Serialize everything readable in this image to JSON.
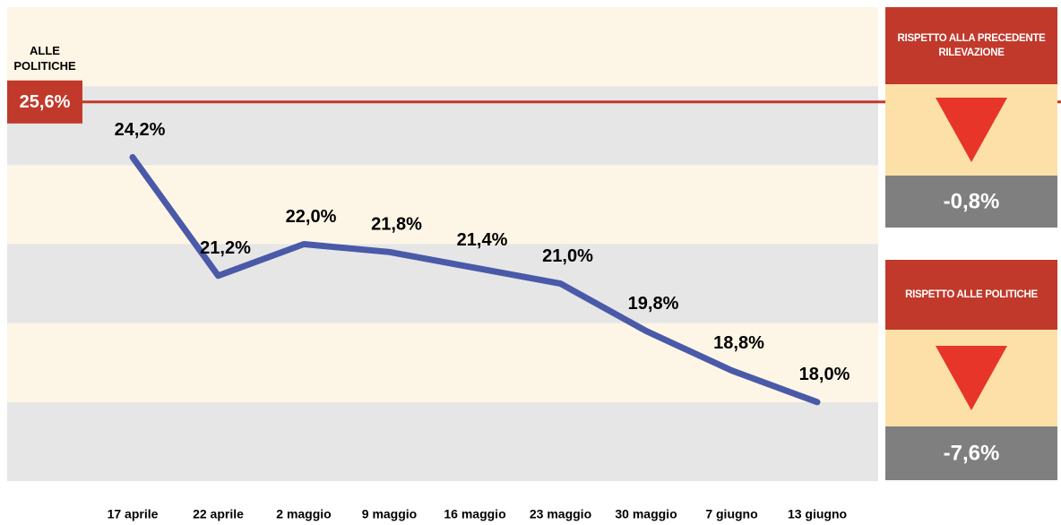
{
  "chart_data": {
    "type": "line",
    "categories": [
      "17 aprile",
      "22 aprile",
      "2 maggio",
      "9 maggio",
      "16 maggio",
      "23 maggio",
      "30 maggio",
      "7 giugno",
      "13 giugno"
    ],
    "values": [
      24.2,
      21.2,
      22.0,
      21.8,
      21.4,
      21.0,
      19.8,
      18.8,
      18.0
    ],
    "value_labels": [
      "24,2%",
      "21,2%",
      "22,0%",
      "21,8%",
      "21,4%",
      "21,0%",
      "19,8%",
      "18,8%",
      "18,0%"
    ],
    "color": "#4a5aa8",
    "ylim": [
      16,
      28
    ],
    "yticks": [
      16,
      18,
      20,
      22,
      24,
      26,
      28
    ],
    "grid": true,
    "reference_line": {
      "title": "ALLE POLITICHE",
      "value": 25.6,
      "label": "25,6%",
      "color": "#c0392b"
    },
    "panels": [
      {
        "title": "RISPETTO ALLA PRECEDENTE RILEVAZIONE",
        "value": -0.8,
        "value_label": "-0,8%"
      },
      {
        "title": "RISPETTO ALLE POLITICHE",
        "value": -7.6,
        "value_label": "-7,6%"
      }
    ]
  }
}
